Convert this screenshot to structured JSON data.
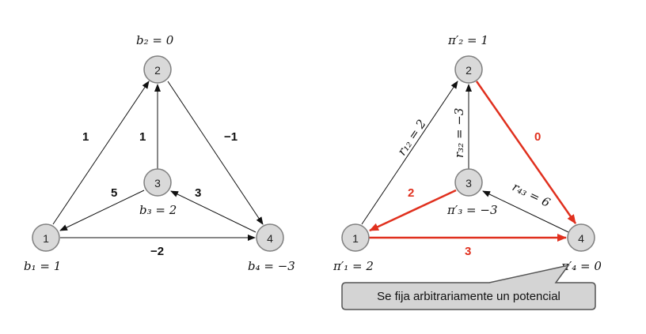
{
  "left_graph": {
    "nodes": [
      "1",
      "2",
      "3",
      "4"
    ],
    "node_labels": {
      "b1": "b₁ = 1",
      "b2": "b₂ = 0",
      "b3": "b₃ = 2",
      "b4": "b₄ = −3"
    },
    "edge_weights": {
      "e12": "1",
      "e32": "1",
      "e24": "−1",
      "e31": "5",
      "e43": "3",
      "e14": "−2"
    }
  },
  "right_graph": {
    "nodes": [
      "1",
      "2",
      "3",
      "4"
    ],
    "node_labels": {
      "p1": "π′₁ = 2",
      "p2": "π′₂ = 1",
      "p3": "π′₃ = −3",
      "p4": "π′₄ = 0"
    },
    "edge_labels": {
      "r12": "r₁₂ = 2",
      "r32": "r₃₂ = −3",
      "r43": "r₄₃ = 6",
      "w24": "0",
      "w31": "2",
      "w14": "3"
    }
  },
  "callout": {
    "text": "Se fija arbitrariamente un potencial"
  },
  "colors": {
    "highlight": "#e0301e",
    "node_fill": "#d9d9d9",
    "node_stroke": "#7f7f7f"
  }
}
